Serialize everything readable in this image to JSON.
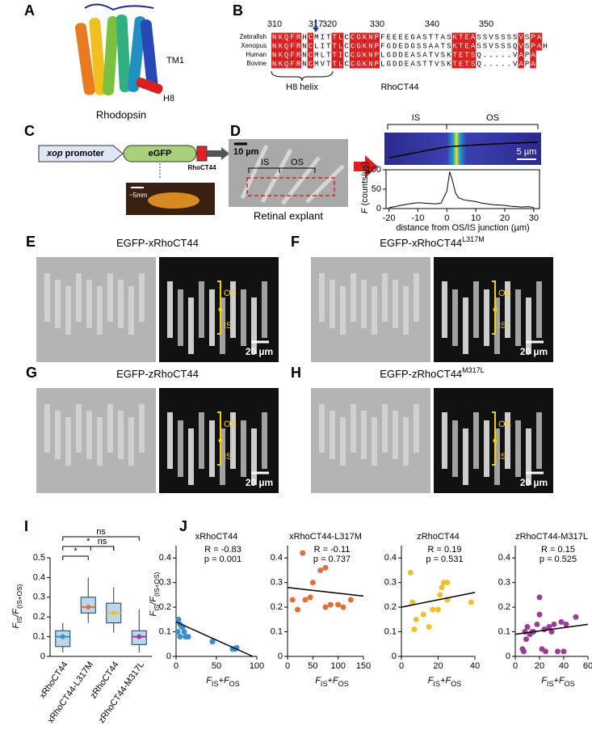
{
  "figure": {
    "A": {
      "letter": "A",
      "tm1": "TM1",
      "h8": "H8",
      "caption": "Rhodopsin"
    },
    "B": {
      "letter": "B",
      "positions": [
        310,
        317,
        320,
        330,
        340,
        350
      ],
      "species": [
        "Zebrafish",
        "Xenopus",
        "Human",
        "Bovine"
      ],
      "sequences": [
        "NKQFRHCMITTLCCGKNPFEEEEGASTTASKTEASSVSSSSVSPA",
        "NKQFRNCLITTLCCGKNPFGDEDGSSAATSKTEASSVSSSQVSPAH",
        "NKQFRNCMLTTICCGKNPLGDDEASATVSKTETSQ.....VAPA",
        "NKQFRNCMVTTLCCGKNPLGDDEASTTVSKTETSQ.....VAPA"
      ],
      "brace_label": "H8 helix",
      "region_label": "RhoCT44"
    },
    "C": {
      "letter": "C",
      "promoter_gene": "xop",
      "promoter": "promoter",
      "gfp": "eGFP",
      "tag": "RhoCT44",
      "scale": "~5mm"
    },
    "D": {
      "letter": "D",
      "scale_left": "10 µm",
      "is": "IS",
      "os": "OS",
      "caption": "Retinal explant",
      "is_right": "IS",
      "os_right": "OS",
      "scale_right": "5 µm"
    },
    "E": {
      "letter": "E",
      "title": "EGFP-xRhoCT44",
      "os": "OS",
      "is": "IS",
      "scale": "20 µm"
    },
    "F": {
      "letter": "F",
      "title": "EGFP-xRhoCT44",
      "superscript": "L317M",
      "os": "OS",
      "is": "IS",
      "scale": "20 µm"
    },
    "G": {
      "letter": "G",
      "title": "EGFP-zRhoCT44",
      "os": "OS",
      "is": "IS",
      "scale": "20 µm"
    },
    "H": {
      "letter": "H",
      "title": "EGFP-zRhoCT44",
      "superscript": "M317L",
      "os": "OS",
      "is": "IS",
      "scale": "20 µm"
    },
    "I": {
      "letter": "I"
    },
    "J": {
      "letter": "J"
    }
  },
  "chart_data": [
    {
      "type": "line",
      "ylabel": [
        "F",
        " (counts/µs)"
      ],
      "xlabel": "distance from OS/IS junction (µm)",
      "x": [
        -20,
        -18,
        -16,
        -14,
        -12,
        -10,
        -8,
        -6,
        -4,
        -2,
        0,
        1,
        2,
        3,
        4,
        6,
        8,
        10,
        12,
        14,
        16,
        18,
        20,
        22,
        24,
        26,
        28,
        30
      ],
      "values": [
        2,
        5,
        8,
        11,
        13,
        15,
        14,
        13,
        12,
        14,
        45,
        95,
        70,
        40,
        28,
        22,
        20,
        18,
        14,
        12,
        10,
        9,
        8,
        6,
        5,
        4,
        5,
        3
      ],
      "color": "#000000",
      "xlim": [
        -21,
        32
      ],
      "xticks": [
        -20,
        -10,
        0,
        10,
        20,
        30
      ],
      "ylim": [
        0,
        100
      ],
      "yticks": [
        0,
        50,
        100
      ]
    },
    {
      "type": "box",
      "ylabel": [
        "F",
        "IS",
        "/F",
        "(IS+OS)"
      ],
      "categories": [
        "xRhoCT44",
        "xRhoCT44-L317M",
        "zRhoCT44",
        "zRhoCT44-M317L"
      ],
      "colors": [
        "#3a8fd0",
        "#e0703a",
        "#f0c030",
        "#9b3d98"
      ],
      "min": [
        0.02,
        0.17,
        0.12,
        0.02
      ],
      "q1": [
        0.05,
        0.22,
        0.17,
        0.06
      ],
      "median": [
        0.1,
        0.25,
        0.22,
        0.1
      ],
      "q3": [
        0.13,
        0.3,
        0.27,
        0.13
      ],
      "max": [
        0.17,
        0.4,
        0.35,
        0.24
      ],
      "significance": [
        "ns",
        "*",
        "*",
        "ns"
      ],
      "ylim": [
        0,
        0.5
      ],
      "yticks": [
        0,
        0.1,
        0.2,
        0.3,
        0.4,
        0.5
      ]
    },
    {
      "type": "scatter",
      "title": "xRhoCT44",
      "r_text": "R = -0.83",
      "p_text": "p = 0.001",
      "color": "#3a8fd0",
      "ylabel": [
        "F",
        "IS",
        "/F",
        "(IS+OS)"
      ],
      "xlabel": [
        "F",
        "IS",
        "+F",
        "OS"
      ],
      "x": [
        3,
        5,
        7,
        2,
        8,
        10,
        12,
        5,
        15,
        45,
        70,
        75,
        73
      ],
      "values": [
        0.15,
        0.13,
        0.12,
        0.1,
        0.12,
        0.1,
        0.08,
        0.08,
        0.08,
        0.06,
        0.03,
        0.035,
        0.03
      ],
      "fit": {
        "x": [
          0,
          95
        ],
        "values": [
          0.14,
          0
        ]
      },
      "xlim": [
        0,
        100
      ],
      "xticks": [
        0,
        50,
        100
      ],
      "ylim": [
        0,
        0.45
      ],
      "yticks": [
        0,
        0.1,
        0.2,
        0.3,
        0.4
      ]
    },
    {
      "type": "scatter",
      "title": "xRhoCT44-L317M",
      "r_text": "R = -0.11",
      "p_text": "p = 0.737",
      "color": "#e0703a",
      "xlabel": [
        "F",
        "IS",
        "+F",
        "OS"
      ],
      "x": [
        10,
        20,
        30,
        35,
        45,
        50,
        65,
        75,
        75,
        85,
        100,
        110,
        125
      ],
      "values": [
        0.23,
        0.19,
        0.42,
        0.23,
        0.24,
        0.3,
        0.35,
        0.36,
        0.2,
        0.21,
        0.21,
        0.2,
        0.23
      ],
      "fit": {
        "x": [
          0,
          150
        ],
        "values": [
          0.28,
          0.245
        ]
      },
      "xlim": [
        0,
        150
      ],
      "xticks": [
        0,
        50,
        100,
        150
      ],
      "ylim": [
        0,
        0.45
      ],
      "yticks": [
        0,
        0.1,
        0.2,
        0.3,
        0.4
      ]
    },
    {
      "type": "scatter",
      "title": "zRhoCT44",
      "r_text": "R = 0.19",
      "p_text": "p = 0.531",
      "color": "#f0c030",
      "xlabel": [
        "F",
        "IS",
        "+F",
        "OS"
      ],
      "x": [
        5,
        6,
        7,
        8,
        12,
        15,
        17,
        20,
        21,
        22,
        23,
        25,
        25,
        38
      ],
      "values": [
        0.34,
        0.22,
        0.11,
        0.15,
        0.17,
        0.12,
        0.19,
        0.19,
        0.25,
        0.28,
        0.3,
        0.3,
        0.23,
        0.22
      ],
      "fit": {
        "x": [
          0,
          40
        ],
        "values": [
          0.2,
          0.26
        ]
      },
      "xlim": [
        0,
        40
      ],
      "xticks": [
        0,
        20,
        40
      ],
      "ylim": [
        0,
        0.45
      ],
      "yticks": [
        0,
        0.1,
        0.2,
        0.3,
        0.4
      ]
    },
    {
      "type": "scatter",
      "title": "zRhoCT44-M317L",
      "r_text": "R = 0.15",
      "p_text": "p = 0.525",
      "color": "#9b3d98",
      "xlabel": [
        "F",
        "IS",
        "+F",
        "OS"
      ],
      "x": [
        6,
        7,
        8,
        9,
        10,
        12,
        14,
        15,
        18,
        20,
        20,
        22,
        24,
        25,
        28,
        30,
        32,
        35,
        38,
        40,
        42,
        50
      ],
      "values": [
        0.03,
        0.02,
        0.1,
        0.07,
        0.12,
        0.09,
        0.1,
        0.1,
        0.13,
        0.24,
        0.17,
        0.03,
        0.11,
        0.02,
        0.12,
        0.1,
        0.13,
        0.02,
        0.14,
        0.02,
        0.13,
        0.16
      ],
      "fit": {
        "x": [
          0,
          60
        ],
        "values": [
          0.09,
          0.13
        ]
      },
      "xlim": [
        0,
        60
      ],
      "xticks": [
        0,
        20,
        40,
        60
      ],
      "ylim": [
        0,
        0.45
      ],
      "yticks": [
        0,
        0.1,
        0.2,
        0.3,
        0.4
      ]
    }
  ]
}
